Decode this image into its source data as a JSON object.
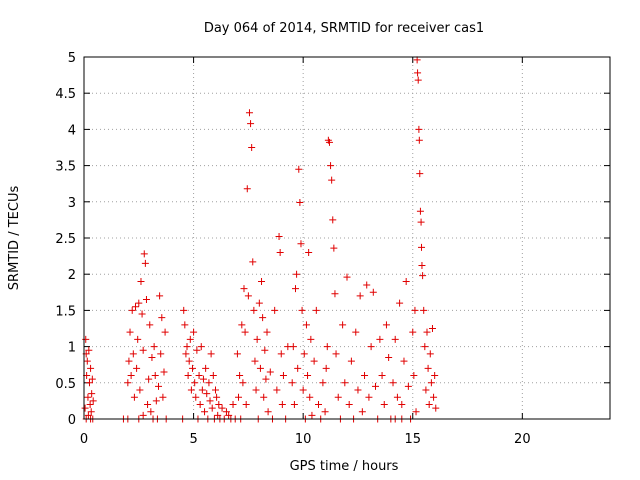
{
  "chart_data": {
    "type": "scatter",
    "title": "Day 064 of 2014, SRMTID for receiver cas1",
    "xlabel": "GPS time / hours",
    "ylabel": "SRMTID / TECUs",
    "xlim": [
      0,
      24
    ],
    "ylim": [
      0,
      5
    ],
    "xticks": [
      0,
      5,
      10,
      15,
      20
    ],
    "xtick_labels": [
      "0",
      "5",
      "10",
      "15",
      "20"
    ],
    "yticks": [
      0,
      0.5,
      1,
      1.5,
      2,
      2.5,
      3,
      3.5,
      4,
      4.5,
      5
    ],
    "ytick_labels": [
      "0",
      "0.5",
      "1",
      "1.5",
      "2",
      "2.5",
      "3",
      "3.5",
      "4",
      "4.5",
      "5"
    ],
    "grid": true,
    "marker": "+",
    "marker_color": "#e00000",
    "series": [
      {
        "name": "cas1",
        "points": [
          [
            0.05,
            0.15
          ],
          [
            0.08,
            1.1
          ],
          [
            0.1,
            0.9
          ],
          [
            0.12,
            0.6
          ],
          [
            0.15,
            0.8
          ],
          [
            0.18,
            0.3
          ],
          [
            0.2,
            0.05
          ],
          [
            0.22,
            0.95
          ],
          [
            0.25,
            0.5
          ],
          [
            0.28,
            0.2
          ],
          [
            0.3,
            0.7
          ],
          [
            0.33,
            0.1
          ],
          [
            0.35,
            0.35
          ],
          [
            0.38,
            0.55
          ],
          [
            0.4,
            0.0
          ],
          [
            0.42,
            0.25
          ],
          [
            0.1,
            0.0
          ],
          [
            0.3,
            0.0
          ],
          [
            1.8,
            0.0
          ],
          [
            2.0,
            0.5
          ],
          [
            2.05,
            0.8
          ],
          [
            2.1,
            1.2
          ],
          [
            2.15,
            0.6
          ],
          [
            2.2,
            1.5
          ],
          [
            2.25,
            0.9
          ],
          [
            2.3,
            0.3
          ],
          [
            2.35,
            1.55
          ],
          [
            2.4,
            0.7
          ],
          [
            2.45,
            1.1
          ],
          [
            2.5,
            1.6
          ],
          [
            2.55,
            0.4
          ],
          [
            2.6,
            1.9
          ],
          [
            2.65,
            1.45
          ],
          [
            2.7,
            0.95
          ],
          [
            2.75,
            2.28
          ],
          [
            2.8,
            2.15
          ],
          [
            2.85,
            1.65
          ],
          [
            2.9,
            0.2
          ],
          [
            2.95,
            0.55
          ],
          [
            3.0,
            1.3
          ],
          [
            3.05,
            0.1
          ],
          [
            3.1,
            0.85
          ],
          [
            3.15,
            0.0
          ],
          [
            3.2,
            1.0
          ],
          [
            3.25,
            0.6
          ],
          [
            3.3,
            0.25
          ],
          [
            3.35,
            0.0
          ],
          [
            3.4,
            0.45
          ],
          [
            3.45,
            1.7
          ],
          [
            3.5,
            0.9
          ],
          [
            3.55,
            1.4
          ],
          [
            3.6,
            0.3
          ],
          [
            3.65,
            0.65
          ],
          [
            3.7,
            1.2
          ],
          [
            3.75,
            0.0
          ],
          [
            2.0,
            0.0
          ],
          [
            2.5,
            0.0
          ],
          [
            2.7,
            0.05
          ],
          [
            4.5,
            0.0
          ],
          [
            4.55,
            1.5
          ],
          [
            4.6,
            1.3
          ],
          [
            4.65,
            0.9
          ],
          [
            4.7,
            1.0
          ],
          [
            4.75,
            0.6
          ],
          [
            4.8,
            0.8
          ],
          [
            4.85,
            1.1
          ],
          [
            4.9,
            0.4
          ],
          [
            4.95,
            0.7
          ],
          [
            5.0,
            1.2
          ],
          [
            5.05,
            0.5
          ],
          [
            5.1,
            0.3
          ],
          [
            5.15,
            0.95
          ],
          [
            5.2,
            0.0
          ],
          [
            5.25,
            0.6
          ],
          [
            5.3,
            0.2
          ],
          [
            5.35,
            1.0
          ],
          [
            5.4,
            0.4
          ],
          [
            5.45,
            0.55
          ],
          [
            5.5,
            0.1
          ],
          [
            5.55,
            0.7
          ],
          [
            5.6,
            0.35
          ],
          [
            5.65,
            0.0
          ],
          [
            5.7,
            0.5
          ],
          [
            5.75,
            0.25
          ],
          [
            5.8,
            0.9
          ],
          [
            5.85,
            0.15
          ],
          [
            5.9,
            0.6
          ],
          [
            5.95,
            0.0
          ],
          [
            6.0,
            0.4
          ],
          [
            6.05,
            0.3
          ],
          [
            6.1,
            0.05
          ],
          [
            6.15,
            0.2
          ],
          [
            6.2,
            0.0
          ],
          [
            6.3,
            0.15
          ],
          [
            6.4,
            0.0
          ],
          [
            6.5,
            0.1
          ],
          [
            6.6,
            0.05
          ],
          [
            6.7,
            0.0
          ],
          [
            6.8,
            0.2
          ],
          [
            6.9,
            0.0
          ],
          [
            7.0,
            0.9
          ],
          [
            7.05,
            0.3
          ],
          [
            7.1,
            0.6
          ],
          [
            7.15,
            0.0
          ],
          [
            7.2,
            1.3
          ],
          [
            7.25,
            0.5
          ],
          [
            7.3,
            1.8
          ],
          [
            7.35,
            1.2
          ],
          [
            7.4,
            0.2
          ],
          [
            7.45,
            3.18
          ],
          [
            7.5,
            1.7
          ],
          [
            7.55,
            4.23
          ],
          [
            7.6,
            4.08
          ],
          [
            7.65,
            3.75
          ],
          [
            7.7,
            2.17
          ],
          [
            7.75,
            1.5
          ],
          [
            7.8,
            0.8
          ],
          [
            7.85,
            0.4
          ],
          [
            7.9,
            1.1
          ],
          [
            7.95,
            0.0
          ],
          [
            8.0,
            1.6
          ],
          [
            8.05,
            0.7
          ],
          [
            8.1,
            1.9
          ],
          [
            8.15,
            1.4
          ],
          [
            8.2,
            0.3
          ],
          [
            8.25,
            0.95
          ],
          [
            8.3,
            0.55
          ],
          [
            8.35,
            1.2
          ],
          [
            8.4,
            0.1
          ],
          [
            8.5,
            0.65
          ],
          [
            8.6,
            0.0
          ],
          [
            8.7,
            1.5
          ],
          [
            8.8,
            0.4
          ],
          [
            8.9,
            2.52
          ],
          [
            8.95,
            2.3
          ],
          [
            9.0,
            0.9
          ],
          [
            9.05,
            0.2
          ],
          [
            9.1,
            0.6
          ],
          [
            9.2,
            0.0
          ],
          [
            9.3,
            1.0
          ],
          [
            9.5,
            0.5
          ],
          [
            9.55,
            1.0
          ],
          [
            9.6,
            0.2
          ],
          [
            9.65,
            1.8
          ],
          [
            9.7,
            2.0
          ],
          [
            9.75,
            0.7
          ],
          [
            9.8,
            3.45
          ],
          [
            9.85,
            2.99
          ],
          [
            9.9,
            2.42
          ],
          [
            9.95,
            1.5
          ],
          [
            10.0,
            0.4
          ],
          [
            10.05,
            0.9
          ],
          [
            10.1,
            0.0
          ],
          [
            10.15,
            1.3
          ],
          [
            10.2,
            0.6
          ],
          [
            10.25,
            2.3
          ],
          [
            10.3,
            0.3
          ],
          [
            10.35,
            1.1
          ],
          [
            10.4,
            0.05
          ],
          [
            10.5,
            0.8
          ],
          [
            10.6,
            1.5
          ],
          [
            10.7,
            0.2
          ],
          [
            10.8,
            0.0
          ],
          [
            10.9,
            0.5
          ],
          [
            11.0,
            0.1
          ],
          [
            11.05,
            0.7
          ],
          [
            11.1,
            1.0
          ],
          [
            11.15,
            3.85
          ],
          [
            11.2,
            3.82
          ],
          [
            11.25,
            3.5
          ],
          [
            11.3,
            3.3
          ],
          [
            11.35,
            2.75
          ],
          [
            11.4,
            2.36
          ],
          [
            11.45,
            1.73
          ],
          [
            11.5,
            0.9
          ],
          [
            11.6,
            0.3
          ],
          [
            11.7,
            0.0
          ],
          [
            11.8,
            1.3
          ],
          [
            11.9,
            0.5
          ],
          [
            12.0,
            1.96
          ],
          [
            12.1,
            0.2
          ],
          [
            12.2,
            0.8
          ],
          [
            12.3,
            0.0
          ],
          [
            12.4,
            1.2
          ],
          [
            12.5,
            0.4
          ],
          [
            12.6,
            1.7
          ],
          [
            12.7,
            0.1
          ],
          [
            12.8,
            0.6
          ],
          [
            12.9,
            1.85
          ],
          [
            13.0,
            0.3
          ],
          [
            13.1,
            1.0
          ],
          [
            13.2,
            1.75
          ],
          [
            13.3,
            0.45
          ],
          [
            13.4,
            0.0
          ],
          [
            13.5,
            1.1
          ],
          [
            13.6,
            0.6
          ],
          [
            13.7,
            0.2
          ],
          [
            13.8,
            1.3
          ],
          [
            13.9,
            0.85
          ],
          [
            14.0,
            0.0
          ],
          [
            14.1,
            0.5
          ],
          [
            14.2,
            1.1
          ],
          [
            14.3,
            0.3
          ],
          [
            14.4,
            1.6
          ],
          [
            14.5,
            0.2
          ],
          [
            14.6,
            0.8
          ],
          [
            14.7,
            1.9
          ],
          [
            14.8,
            0.45
          ],
          [
            14.9,
            0.0
          ],
          [
            15.0,
            1.2
          ],
          [
            15.05,
            0.6
          ],
          [
            15.1,
            1.5
          ],
          [
            15.15,
            0.1
          ],
          [
            15.2,
            4.96
          ],
          [
            15.22,
            4.78
          ],
          [
            15.25,
            4.68
          ],
          [
            15.28,
            4.0
          ],
          [
            15.3,
            3.85
          ],
          [
            15.32,
            3.39
          ],
          [
            15.35,
            2.87
          ],
          [
            15.38,
            2.72
          ],
          [
            15.4,
            2.37
          ],
          [
            15.42,
            2.12
          ],
          [
            15.45,
            1.98
          ],
          [
            15.5,
            1.5
          ],
          [
            15.55,
            1.0
          ],
          [
            15.6,
            0.4
          ],
          [
            15.65,
            1.2
          ],
          [
            15.7,
            0.7
          ],
          [
            15.75,
            0.2
          ],
          [
            15.8,
            0.9
          ],
          [
            15.85,
            0.5
          ],
          [
            15.9,
            1.25
          ],
          [
            15.95,
            0.3
          ],
          [
            16.0,
            0.6
          ],
          [
            16.05,
            0.15
          ],
          [
            14.5,
            0.0
          ],
          [
            14.2,
            0.0
          ]
        ]
      }
    ]
  }
}
